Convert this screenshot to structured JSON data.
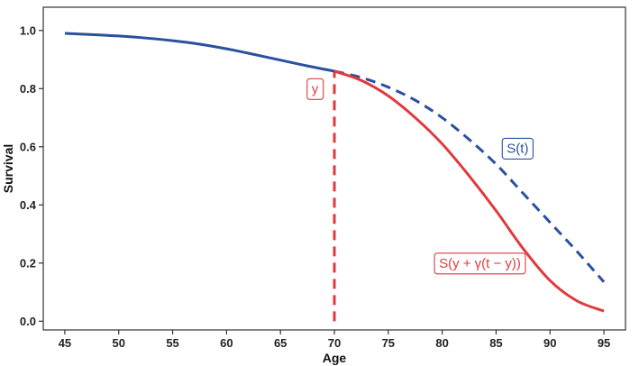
{
  "chart_data": {
    "type": "line",
    "xlabel": "Age",
    "ylabel": "Survival",
    "xlim": [
      43,
      97
    ],
    "ylim": [
      -0.03,
      1.08
    ],
    "x_ticks": [
      45,
      50,
      55,
      60,
      65,
      70,
      75,
      80,
      85,
      90,
      95
    ],
    "y_ticks": [
      0.0,
      0.2,
      0.4,
      0.6,
      0.8,
      1.0
    ],
    "x_tick_labels": [
      "45",
      "50",
      "55",
      "60",
      "65",
      "70",
      "75",
      "80",
      "85",
      "90",
      "95"
    ],
    "y_tick_labels": [
      "0.0",
      "0.2",
      "0.4",
      "0.6",
      "0.8",
      "1.0"
    ],
    "grid": false,
    "colors": {
      "blue": "#2a50a0",
      "red": "#e0393e"
    },
    "series": [
      {
        "name": "S(t)",
        "color": "#2a50a0",
        "x": [
          45,
          47.5,
          50,
          52.5,
          55,
          57.5,
          60,
          62.5,
          65,
          67.5,
          70
        ],
        "y": [
          0.99,
          0.986,
          0.981,
          0.974,
          0.965,
          0.953,
          0.937,
          0.918,
          0.898,
          0.878,
          0.86
        ],
        "style": "solid"
      },
      {
        "name": "S(t) continued",
        "color": "#2a50a0",
        "x": [
          70,
          72.5,
          75,
          77.5,
          80,
          82.5,
          85,
          87.5,
          90,
          92.5,
          95
        ],
        "y": [
          0.86,
          0.838,
          0.805,
          0.76,
          0.7,
          0.625,
          0.54,
          0.44,
          0.34,
          0.24,
          0.135
        ],
        "style": "dashed"
      },
      {
        "name": "S(y + γ(t − y))",
        "color": "#e0393e",
        "x": [
          70,
          72.5,
          75,
          77.5,
          80,
          82.5,
          85,
          87.5,
          90,
          92.5,
          95
        ],
        "y": [
          0.86,
          0.828,
          0.775,
          0.7,
          0.61,
          0.5,
          0.38,
          0.25,
          0.14,
          0.07,
          0.035
        ],
        "style": "solid"
      }
    ],
    "vline": {
      "x": 70,
      "y_from": 0.0,
      "y_to": 0.86,
      "color": "#e0393e",
      "style": "dashed"
    },
    "annotations": [
      {
        "text": "y",
        "x": 68.2,
        "y": 0.8,
        "color": "#e0393e"
      },
      {
        "text": "S(t)",
        "x": 87.0,
        "y": 0.595,
        "color": "#2a50a0"
      },
      {
        "text": "S(y + γ(t − y))",
        "x": 83.5,
        "y": 0.2,
        "color": "#e0393e"
      }
    ]
  }
}
